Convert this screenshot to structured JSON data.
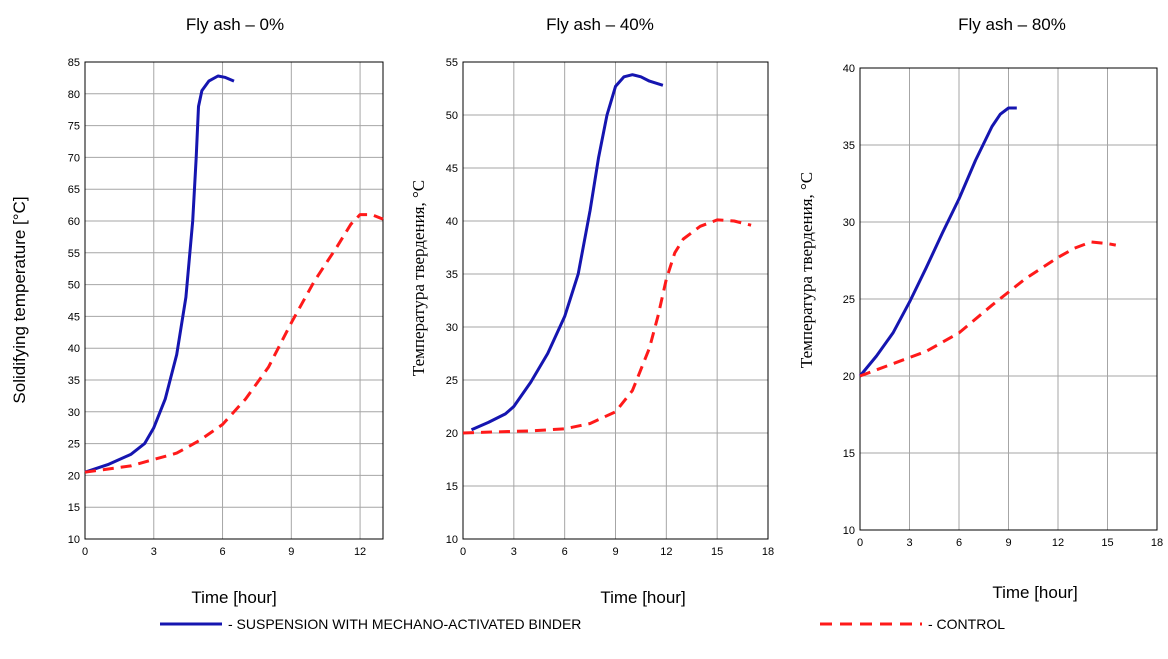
{
  "colors": {
    "suspension": "#1515b0",
    "control": "#ff1a1a",
    "grid": "#a6a6a6"
  },
  "legend": {
    "suspension_label": "-   SUSPENSION WITH MECHANO-ACTIVATED BINDER",
    "control_label": "-   CONTROL"
  },
  "chart_data": [
    {
      "type": "line",
      "title": "Fly ash – 0%",
      "xlabel": "Time [hour]",
      "ylabel": "Solidifying temperature [°C]",
      "xlim": [
        0,
        13
      ],
      "ylim": [
        10,
        85
      ],
      "xticks": [
        0,
        3,
        6,
        9,
        12
      ],
      "yticks": [
        10,
        15,
        20,
        25,
        30,
        35,
        40,
        45,
        50,
        55,
        60,
        65,
        70,
        75,
        80,
        85
      ],
      "grid": true,
      "series": [
        {
          "key": "suspension",
          "style": "solid",
          "x": [
            0,
            1,
            2,
            2.6,
            3,
            3.5,
            4,
            4.4,
            4.7,
            4.85,
            4.95,
            5.1,
            5.4,
            5.8,
            6.1,
            6.5
          ],
          "y": [
            20.5,
            21.7,
            23.3,
            25,
            27.5,
            32,
            39,
            48,
            60,
            70,
            78,
            80.5,
            82,
            82.8,
            82.6,
            82
          ]
        },
        {
          "key": "control",
          "style": "dashed",
          "x": [
            0,
            2,
            4,
            5,
            6,
            7,
            8,
            9,
            10,
            11,
            11.6,
            12,
            12.5,
            13
          ],
          "y": [
            20.5,
            21.5,
            23.5,
            25.5,
            28,
            32,
            37,
            44,
            50.5,
            56,
            59.5,
            61,
            61,
            60.3
          ]
        }
      ]
    },
    {
      "type": "line",
      "title": "Fly ash – 40%",
      "xlabel": "Time [hour]",
      "ylabel": "Температура твердения, °С",
      "xlim": [
        0,
        18
      ],
      "ylim": [
        10,
        55
      ],
      "xticks": [
        0,
        3,
        6,
        9,
        12,
        15,
        18
      ],
      "yticks": [
        10,
        15,
        20,
        25,
        30,
        35,
        40,
        45,
        50,
        55
      ],
      "grid": true,
      "series": [
        {
          "key": "suspension",
          "style": "solid",
          "x": [
            0.5,
            1.5,
            2.5,
            3,
            4,
            5,
            6,
            6.8,
            7.5,
            8,
            8.5,
            9,
            9.5,
            10,
            10.5,
            11,
            11.8
          ],
          "y": [
            20.3,
            21,
            21.8,
            22.5,
            24.8,
            27.5,
            31,
            35,
            41,
            46,
            50,
            52.7,
            53.6,
            53.8,
            53.6,
            53.2,
            52.8
          ]
        },
        {
          "key": "control",
          "style": "dashed",
          "x": [
            0,
            2,
            4,
            6,
            7.5,
            9,
            10,
            11,
            11.5,
            12,
            12.5,
            13,
            14,
            15,
            16,
            17
          ],
          "y": [
            20,
            20.1,
            20.2,
            20.4,
            20.9,
            22,
            24,
            28,
            31,
            34.5,
            37,
            38.3,
            39.5,
            40.1,
            40,
            39.6
          ]
        }
      ]
    },
    {
      "type": "line",
      "title": "Fly ash – 80%",
      "xlabel": "Time [hour]",
      "ylabel": "Температура твердения, °С",
      "xlim": [
        0,
        18
      ],
      "ylim": [
        10,
        40
      ],
      "xticks": [
        0,
        3,
        6,
        9,
        12,
        15,
        18
      ],
      "yticks": [
        10,
        15,
        20,
        25,
        30,
        35,
        40
      ],
      "grid": true,
      "series": [
        {
          "key": "suspension",
          "style": "solid",
          "x": [
            0,
            1,
            2,
            3,
            4,
            5,
            6,
            7,
            8,
            8.5,
            9,
            9.5
          ],
          "y": [
            20,
            21.3,
            22.8,
            24.8,
            27,
            29.3,
            31.5,
            34,
            36.2,
            37,
            37.4,
            37.4
          ]
        },
        {
          "key": "control",
          "style": "dashed",
          "x": [
            0,
            2,
            4,
            6,
            8,
            10,
            12,
            13,
            14,
            15,
            15.5
          ],
          "y": [
            20,
            20.8,
            21.6,
            22.8,
            24.6,
            26.3,
            27.7,
            28.3,
            28.7,
            28.6,
            28.5
          ]
        }
      ]
    }
  ]
}
